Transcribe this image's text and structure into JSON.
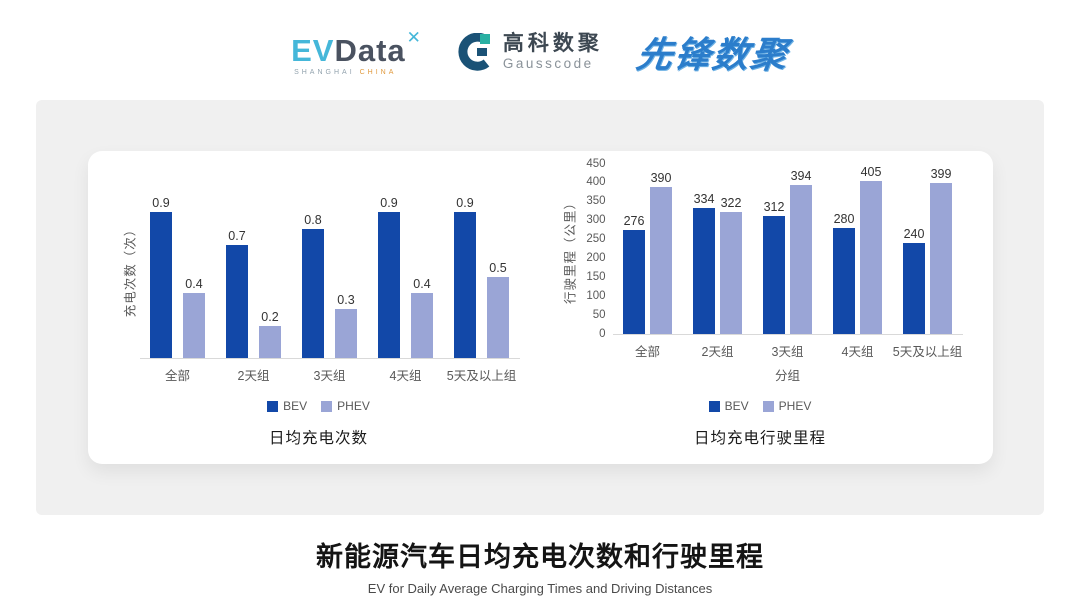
{
  "header": {
    "evdata": {
      "ev": "EV",
      "data": "Data",
      "mark": "✕",
      "sub_shanghai": "SHANGHAI",
      "sub_china": "CHINA"
    },
    "gausscode": {
      "cn": "高科数聚",
      "en": "Gausscode"
    },
    "pioneer": {
      "text": "先锋数聚"
    }
  },
  "colors": {
    "bev": "#1248a8",
    "phev": "#9aa5d6"
  },
  "chart_data": [
    {
      "type": "bar",
      "title": "日均充电次数",
      "ylabel": "充电次数（次）",
      "xlabel": "",
      "categories": [
        "全部",
        "2天组",
        "3天组",
        "4天组",
        "5天及以上组"
      ],
      "series": [
        {
          "name": "BEV",
          "color": "#1248a8",
          "values": [
            0.9,
            0.7,
            0.8,
            0.9,
            0.9
          ]
        },
        {
          "name": "PHEV",
          "color": "#9aa5d6",
          "values": [
            0.4,
            0.2,
            0.3,
            0.4,
            0.5
          ]
        }
      ],
      "ylim": [
        0,
        1
      ],
      "yticks": [],
      "grid": false,
      "legend_position": "bottom",
      "data_labels": true
    },
    {
      "type": "bar",
      "title": "日均充电行驶里程",
      "ylabel": "行驶里程（公里）",
      "xlabel": "分组",
      "categories": [
        "全部",
        "2天组",
        "3天组",
        "4天组",
        "5天及以上组"
      ],
      "series": [
        {
          "name": "BEV",
          "color": "#1248a8",
          "values": [
            276,
            334,
            312,
            280,
            240
          ]
        },
        {
          "name": "PHEV",
          "color": "#9aa5d6",
          "values": [
            390,
            322,
            394,
            405,
            399
          ]
        }
      ],
      "ylim": [
        0,
        450
      ],
      "yticks": [
        0,
        50,
        100,
        150,
        200,
        250,
        300,
        350,
        400,
        450
      ],
      "grid": false,
      "legend_position": "bottom",
      "data_labels": true
    }
  ],
  "footer": {
    "title": "新能源汽车日均充电次数和行驶里程",
    "subtitle": "EV for Daily Average Charging Times and Driving Distances"
  }
}
